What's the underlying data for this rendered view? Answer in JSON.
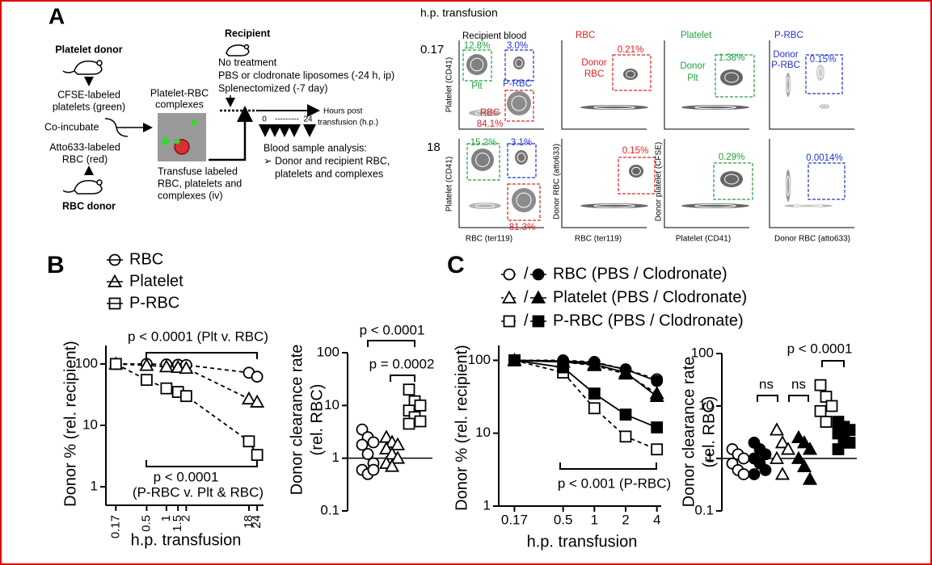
{
  "panel_labels": [
    "A",
    "B",
    "C"
  ],
  "diagram": {
    "texts": [
      "Platelet donor",
      "CFSE-labeled",
      "platelets (green)",
      "Co-incubate",
      "Atto633-labeled",
      "RBC (red)",
      "RBC donor",
      "Platelet-RBC",
      "complexes",
      "Transfuse labeled",
      "RBC, platelets and",
      "complexes (iv)",
      "Recipient",
      "No treatment",
      "PBS or clodronate liposomes (-24 h, ip)",
      "Splenectomized (-7 day)",
      "0",
      "---------",
      "24",
      "Hours post",
      "transfusion (h.p.)",
      "Blood sample analysis:",
      "➢ Donor and recipient RBC,",
      "platelets and complexes"
    ]
  },
  "flow": {
    "header": "h.p. transfusion",
    "times": [
      "0.17",
      "18"
    ],
    "columns": [
      "Recipient blood",
      "RBC",
      "Platelet",
      "P-RBC"
    ],
    "y_labels": [
      "Platelet (CD41)",
      "Donor RBC (atto633)",
      "Donor platelet (CFSE)"
    ],
    "x_labels": [
      "RBC (ter119)",
      "RBC (ter119)",
      "Platelet (CD41)",
      "Donor RBC (atto633)"
    ],
    "gates": [
      [
        [
          "12.8%",
          "Plt",
          "3.0%",
          "P-RBC",
          "RBC",
          "84.1%"
        ],
        [
          "Donor",
          "RBC",
          "0.21%"
        ],
        [
          "Donor",
          "Plt",
          "1.38%"
        ],
        [
          "Donor",
          "P-RBC",
          "0.15%"
        ]
      ],
      [
        [
          "15.2%",
          "3.1%",
          "81.3%"
        ],
        [
          "0.15%"
        ],
        [
          "0.29%"
        ],
        [
          "0.0014%"
        ]
      ]
    ]
  },
  "chart_data": [
    {
      "type": "line",
      "xscale": "log",
      "yscale": "log",
      "xlabel": "h.p. transfusion",
      "ylabel": "Donor % (rel. recipient)",
      "x": [
        0.17,
        0.5,
        1,
        1.5,
        2,
        18,
        24
      ],
      "xlim": [
        0.12,
        30
      ],
      "xticks": [
        0.17,
        0.5,
        1,
        1.5,
        2,
        18,
        24
      ],
      "ylim": [
        0.5,
        200
      ],
      "yticks": [
        1,
        10,
        100
      ],
      "series": [
        {
          "name": "RBC",
          "marker": "circle",
          "fill": "none",
          "line": "dashed",
          "values": [
            100,
            100,
            98,
            97,
            96,
            72,
            62
          ]
        },
        {
          "name": "Platelet",
          "marker": "triangle",
          "fill": "none",
          "line": "dashed",
          "values": [
            100,
            95,
            90,
            88,
            85,
            27,
            24
          ]
        },
        {
          "name": "P-RBC",
          "marker": "square",
          "fill": "none",
          "line": "dashed",
          "values": [
            100,
            55,
            40,
            35,
            30,
            5.5,
            3.3
          ]
        }
      ],
      "annotations": [
        "p < 0.0001 (Plt v. RBC)",
        "p < 0.0001",
        "(P-RBC v. Plt & RBC)"
      ]
    },
    {
      "type": "dot",
      "yscale": "log",
      "ylabel": [
        "Donor clearance rate",
        "(rel. RBC)"
      ],
      "ylim": [
        0.1,
        100
      ],
      "yticks": [
        0.1,
        1,
        10,
        100
      ],
      "reference_line": 1,
      "groups": [
        {
          "marker": "circle",
          "fill": "none",
          "values": [
            3.5,
            2.5,
            2,
            1.8,
            1.2,
            0.8,
            0.6,
            0.5,
            0.6
          ]
        },
        {
          "marker": "triangle",
          "fill": "none",
          "values": [
            2.5,
            2,
            1.8,
            1.5,
            1.2,
            1,
            0.8,
            0.7
          ]
        },
        {
          "marker": "square",
          "fill": "none",
          "values": [
            20,
            12,
            10,
            8,
            6,
            5,
            4.5
          ]
        }
      ],
      "annotations": [
        "p < 0.0001",
        "p = 0.0002"
      ]
    },
    {
      "type": "line",
      "xscale": "log",
      "yscale": "log",
      "xlabel": "h.p. transfusion",
      "ylabel": "Donor % (rel. recipient)",
      "x": [
        0.17,
        0.5,
        1,
        2,
        4
      ],
      "xlim": [
        0.12,
        4.4
      ],
      "xticks": [
        0.17,
        0.5,
        1,
        2,
        4
      ],
      "ylim": [
        1,
        160
      ],
      "yticks": [
        1,
        10,
        100
      ],
      "legend_separator": "/",
      "groups": [
        {
          "name": "RBC (PBS / Clodronate)",
          "marker": "circle",
          "series": [
            {
              "fill": "none",
              "line": "dashed",
              "values": [
                100,
                100,
                95,
                75,
                55
              ]
            },
            {
              "fill": "#000",
              "line": "solid",
              "values": [
                100,
                98,
                93,
                75,
                52
              ]
            }
          ]
        },
        {
          "name": "Platelet (PBS / Clodronate)",
          "marker": "triangle",
          "series": [
            {
              "fill": "none",
              "line": "dashed",
              "values": [
                100,
                95,
                85,
                65,
                35
              ]
            },
            {
              "fill": "#000",
              "line": "solid",
              "values": [
                100,
                95,
                88,
                68,
                32
              ]
            }
          ]
        },
        {
          "name": "P-RBC (PBS / Clodronate)",
          "marker": "square",
          "series": [
            {
              "fill": "none",
              "line": "dashed",
              "values": [
                100,
                68,
                22,
                9,
                6
              ]
            },
            {
              "fill": "#000",
              "line": "solid",
              "values": [
                100,
                80,
                35,
                18,
                12
              ]
            }
          ]
        }
      ],
      "annotations": [
        "p < 0.001 (P-RBC)"
      ]
    },
    {
      "type": "dot",
      "yscale": "log",
      "ylabel": [
        "Donor clearance rate",
        "(rel. RBC)"
      ],
      "ylim": [
        0.1,
        100
      ],
      "yticks": [
        0.1,
        1,
        10,
        100
      ],
      "reference_line": 1,
      "groups": [
        {
          "marker": "circle",
          "fill": "none",
          "values": [
            1.5,
            1.2,
            1,
            0.8,
            0.6,
            0.5
          ]
        },
        {
          "marker": "circle",
          "fill": "#000",
          "values": [
            2,
            1.5,
            1.2,
            1,
            0.8,
            0.6,
            0.5
          ]
        },
        {
          "marker": "triangle",
          "fill": "none",
          "values": [
            3.5,
            2,
            1.5,
            1,
            0.5
          ]
        },
        {
          "marker": "triangle",
          "fill": "#000",
          "values": [
            2.5,
            2,
            1.5,
            1,
            0.7,
            0.4
          ]
        },
        {
          "marker": "square",
          "fill": "none",
          "values": [
            25,
            15,
            10,
            8,
            5
          ]
        },
        {
          "marker": "square",
          "fill": "#000",
          "values": [
            5,
            4,
            3.5,
            3,
            2.5,
            2,
            1.5
          ]
        }
      ],
      "annotations": [
        "ns",
        "ns",
        "p < 0.0001"
      ]
    }
  ]
}
